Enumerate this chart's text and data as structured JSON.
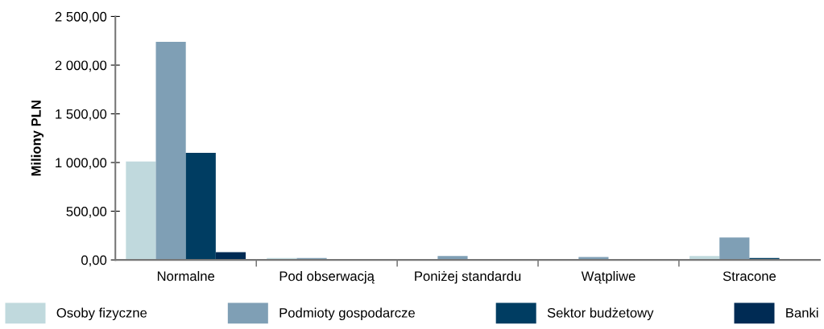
{
  "chart_data": {
    "type": "bar",
    "ylabel": "Miliony PLN",
    "categories": [
      "Normalne",
      "Pod obserwacją",
      "Poniżej standardu",
      "Wątpliwe",
      "Stracone"
    ],
    "series": [
      {
        "name": "Osoby fizyczne",
        "color": "#c0d9dd",
        "values": [
          1010,
          20,
          0,
          0,
          40
        ]
      },
      {
        "name": "Podmioty gospodarcze",
        "color": "#7f9fb5",
        "values": [
          2240,
          20,
          40,
          30,
          230
        ]
      },
      {
        "name": "Sektor budżetowy",
        "color": "#003d62",
        "values": [
          1100,
          0,
          0,
          0,
          20
        ]
      },
      {
        "name": "Banki",
        "color": "#002b54",
        "values": [
          80,
          0,
          0,
          0,
          0
        ]
      }
    ],
    "ylim": [
      0,
      2500
    ],
    "yticks": [
      {
        "value": 0,
        "label": "0,00"
      },
      {
        "value": 500,
        "label": "500,00"
      },
      {
        "value": 1000,
        "label": "1 000,00"
      },
      {
        "value": 1500,
        "label": "1 500,00"
      },
      {
        "value": 2000,
        "label": "2 000,00"
      },
      {
        "value": 2500,
        "label": "2 500,00"
      }
    ],
    "grid": false,
    "legend": "bottom"
  }
}
